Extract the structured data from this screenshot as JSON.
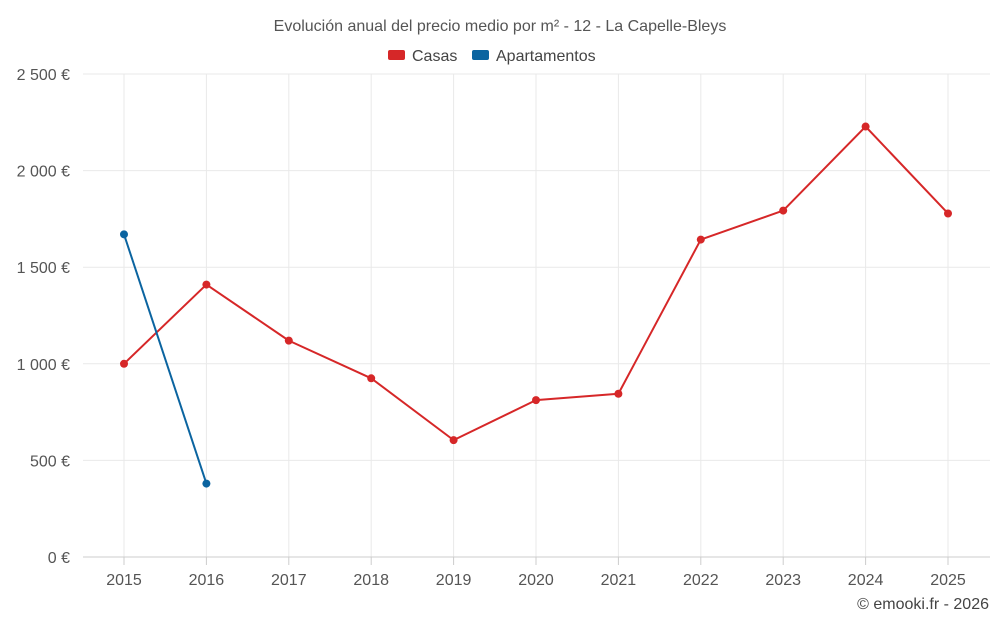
{
  "chart_data": {
    "type": "line",
    "title": "Evolución anual del precio medio por m² - 12 - La Capelle-Bleys",
    "categories": [
      "2015",
      "2016",
      "2017",
      "2018",
      "2019",
      "2020",
      "2021",
      "2022",
      "2023",
      "2024",
      "2025"
    ],
    "y_ticks": [
      "0 €",
      "500 €",
      "1 000 €",
      "1 500 €",
      "2 000 €",
      "2 500 €"
    ],
    "y_tick_values": [
      0,
      500,
      1000,
      1500,
      2000,
      2500
    ],
    "ylim": [
      0,
      2500
    ],
    "grid": true,
    "legend_position": "top-center",
    "series": [
      {
        "name": "Casas",
        "color": "#d62728",
        "values": [
          1000,
          1410,
          1120,
          925,
          605,
          812,
          845,
          1643,
          1793,
          2228,
          1778
        ]
      },
      {
        "name": "Apartamentos",
        "color": "#0b64a0",
        "values": [
          1670,
          380,
          null,
          null,
          null,
          null,
          null,
          null,
          null,
          null,
          null
        ]
      }
    ]
  },
  "credit": "© emooki.fr - 2026"
}
